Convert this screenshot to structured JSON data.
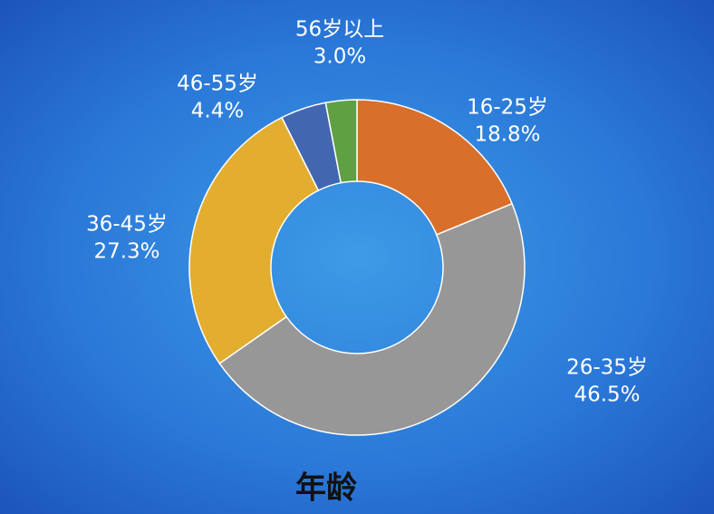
{
  "chart_data": {
    "type": "donut",
    "title": "年龄",
    "categories": [
      "16-25岁",
      "26-35岁",
      "36-45岁",
      "46-55岁",
      "56岁以上"
    ],
    "values": [
      18.8,
      46.5,
      27.3,
      4.4,
      3.0
    ],
    "value_labels": [
      "18.8%",
      "46.5%",
      "27.3%",
      "4.4%",
      "3.0%"
    ],
    "colors": [
      "#d8702b",
      "#979797",
      "#e3ad2f",
      "#4267b0",
      "#5fa042"
    ]
  }
}
